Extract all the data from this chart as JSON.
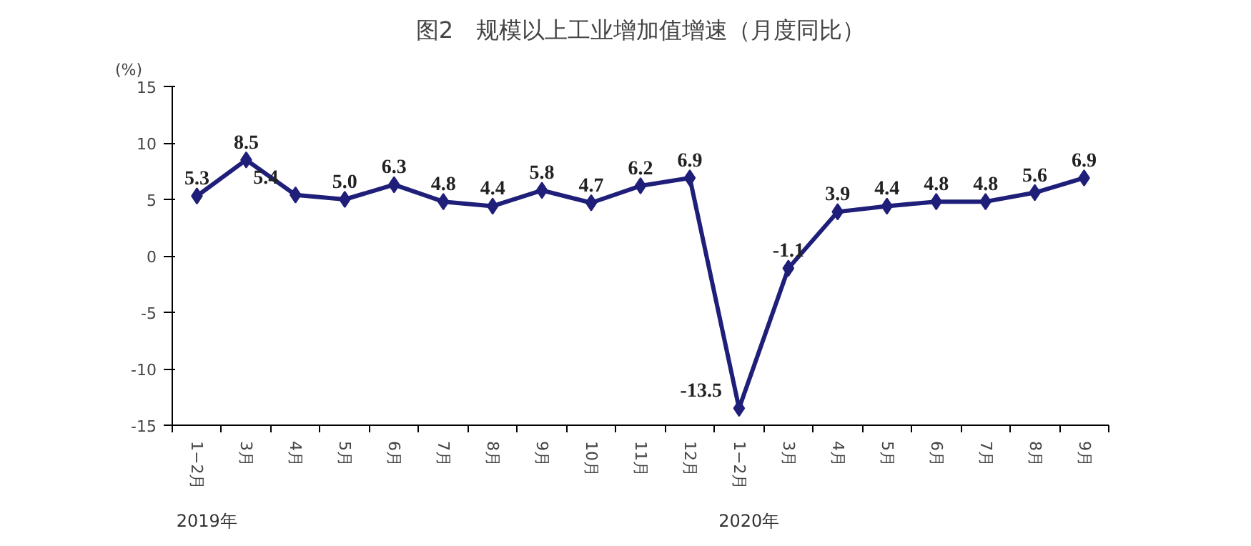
{
  "chart_data": {
    "type": "line",
    "title": "图2　规模以上工业增加值增速（月度同比）",
    "ylabel": "(%)",
    "categories": [
      "1−2月",
      "3月",
      "4月",
      "5月",
      "6月",
      "7月",
      "8月",
      "9月",
      "10月",
      "11月",
      "12月",
      "1−2月",
      "3月",
      "4月",
      "5月",
      "6月",
      "7月",
      "8月",
      "9月"
    ],
    "series": [
      {
        "color": "#1f1f7a",
        "values": [
          5.3,
          8.5,
          5.4,
          5.0,
          6.3,
          4.8,
          4.4,
          5.8,
          4.7,
          6.2,
          6.9,
          -13.5,
          -1.1,
          3.9,
          4.4,
          4.8,
          4.8,
          5.6,
          6.9
        ]
      }
    ],
    "ylim": [
      -15,
      15
    ],
    "yticks": [
      -15,
      -10,
      -5,
      0,
      5,
      10,
      15
    ],
    "annotations": [
      "2019年",
      "2020年"
    ],
    "value_labels": [
      "5.3",
      "8.5",
      "5.4",
      "5.0",
      "6.3",
      "4.8",
      "4.4",
      "5.8",
      "4.7",
      "6.2",
      "6.9",
      "-13.5",
      "-1.1",
      "3.9",
      "4.4",
      "4.8",
      "4.8",
      "5.6",
      "6.9"
    ],
    "marker": "diamond",
    "line_style": "solid",
    "grid": false
  }
}
